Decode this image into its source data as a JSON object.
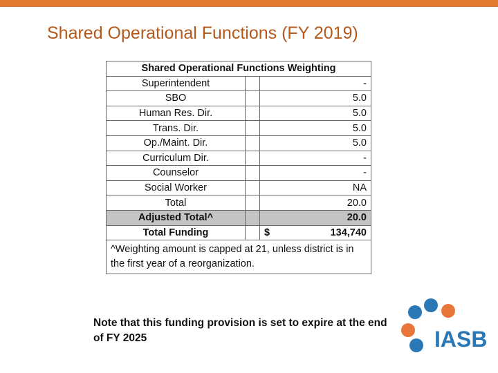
{
  "slide": {
    "title": "Shared Operational Functions (FY 2019)",
    "table": {
      "header": "Shared Operational Functions Weighting",
      "rows": [
        {
          "label": "Superintendent",
          "value": "-"
        },
        {
          "label": "SBO",
          "value": "5.0"
        },
        {
          "label": "Human Res. Dir.",
          "value": "5.0"
        },
        {
          "label": "Trans. Dir.",
          "value": "5.0"
        },
        {
          "label": "Op./Maint. Dir.",
          "value": "5.0"
        },
        {
          "label": "Curriculum Dir.",
          "value": "-"
        },
        {
          "label": "Counselor",
          "value": "-"
        },
        {
          "label": "Social Worker",
          "value": "NA"
        },
        {
          "label": "Total",
          "value": "20.0"
        },
        {
          "label": "Adjusted Total^",
          "value": "20.0"
        },
        {
          "label": "Total Funding",
          "currency": "$",
          "value": "134,740"
        }
      ],
      "footnote": "^Weighting amount is capped at 21, unless district is in the first year of a reorganization."
    },
    "note": "Note that this funding provision is set to expire at the end of FY 2025",
    "logo": "IASB"
  }
}
